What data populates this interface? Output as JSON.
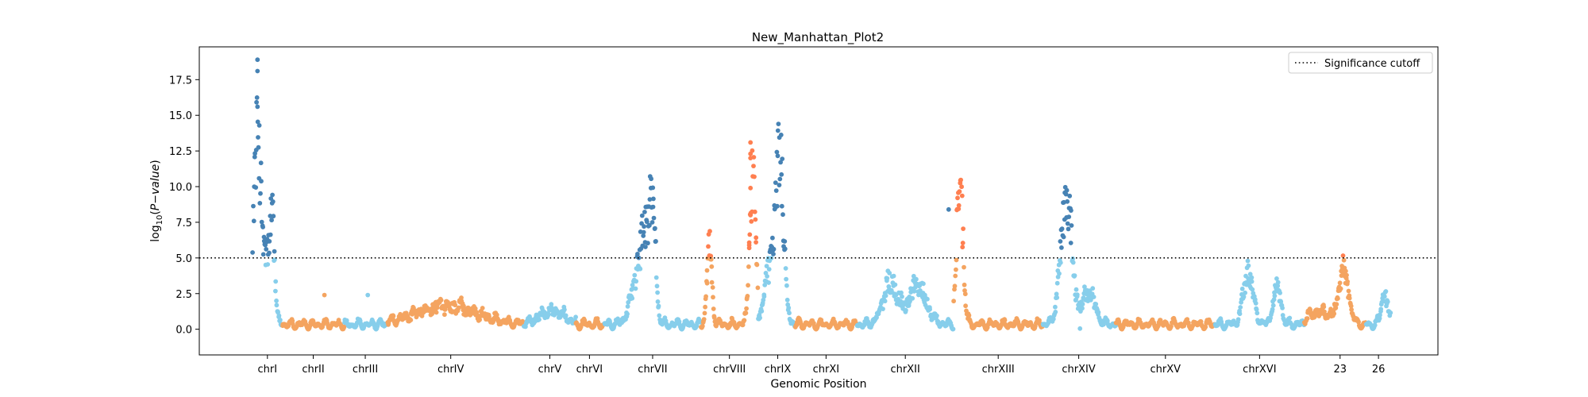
{
  "chart_data": {
    "type": "scatter",
    "title": "New_Manhattan_Plot2",
    "xlabel": "Genomic Position",
    "ylabel": "log10(P−value)",
    "ylim": [
      -1.8,
      19.8
    ],
    "yticks": [
      "0.0",
      "2.5",
      "5.0",
      "7.5",
      "10.0",
      "12.5",
      "15.0",
      "17.5"
    ],
    "ytick_values": [
      0,
      2.5,
      5,
      7.5,
      10,
      12.5,
      15,
      17.5
    ],
    "grid": false,
    "legend_position": "top-right",
    "legend": [
      {
        "label": "Significance cutoff",
        "style": "dotted",
        "color": "#000000"
      }
    ],
    "threshold": 5.0,
    "colors": {
      "light_blue": "#87ceeb",
      "sandy_orange": "#f4a460",
      "dark_blue": "#4682b4",
      "coral": "#ff7f50"
    },
    "chromosomes": [
      {
        "label": "chrI",
        "x": 0.055,
        "start": 0.043,
        "end": 0.067
      },
      {
        "label": "chrII",
        "x": 0.092,
        "start": 0.067,
        "end": 0.117
      },
      {
        "label": "chrIII",
        "x": 0.134,
        "start": 0.117,
        "end": 0.152
      },
      {
        "label": "chrIV",
        "x": 0.203,
        "start": 0.152,
        "end": 0.262
      },
      {
        "label": "chrV",
        "x": 0.283,
        "start": 0.262,
        "end": 0.304
      },
      {
        "label": "chrVI",
        "x": 0.315,
        "start": 0.304,
        "end": 0.327
      },
      {
        "label": "chrVII",
        "x": 0.366,
        "start": 0.327,
        "end": 0.405
      },
      {
        "label": "chrVIII",
        "x": 0.428,
        "start": 0.405,
        "end": 0.451
      },
      {
        "label": "chrIX",
        "x": 0.467,
        "start": 0.451,
        "end": 0.481
      },
      {
        "label": "chrXI",
        "x": 0.506,
        "start": 0.481,
        "end": 0.531
      },
      {
        "label": "chrXII",
        "x": 0.57,
        "start": 0.531,
        "end": 0.609
      },
      {
        "label": "chrXIII",
        "x": 0.645,
        "start": 0.609,
        "end": 0.681
      },
      {
        "label": "chrXIV",
        "x": 0.71,
        "start": 0.681,
        "end": 0.74
      },
      {
        "label": "chrXV",
        "x": 0.78,
        "start": 0.74,
        "end": 0.82
      },
      {
        "label": "chrXVI",
        "x": 0.856,
        "start": 0.82,
        "end": 0.892
      },
      {
        "label": "23",
        "x": 0.921,
        "start": 0.892,
        "end": 0.942
      },
      {
        "label": "26",
        "x": 0.952,
        "start": 0.942,
        "end": 0.962
      }
    ],
    "peaks": [
      {
        "center": 0.047,
        "width": 0.0035,
        "height": 13.2,
        "chrom": 0
      },
      {
        "center": 0.055,
        "width": 0.002,
        "height": 3.2,
        "chrom": 0
      },
      {
        "center": 0.059,
        "width": 0.002,
        "height": 7.3,
        "chrom": 0
      },
      {
        "center": 0.355,
        "width": 0.006,
        "height": 3.6,
        "chrom": 6
      },
      {
        "center": 0.36,
        "width": 0.003,
        "height": 4.2,
        "chrom": 6
      },
      {
        "center": 0.366,
        "width": 0.0025,
        "height": 8.0,
        "chrom": 6
      },
      {
        "center": 0.412,
        "width": 0.002,
        "height": 5.6,
        "chrom": 7
      },
      {
        "center": 0.447,
        "width": 0.0025,
        "height": 11.0,
        "chrom": 7
      },
      {
        "center": 0.462,
        "width": 0.005,
        "height": 4.5,
        "chrom": 8
      },
      {
        "center": 0.469,
        "width": 0.003,
        "height": 10.5,
        "chrom": 8
      },
      {
        "center": 0.558,
        "width": 0.006,
        "height": 3.0,
        "chrom": 10
      },
      {
        "center": 0.58,
        "width": 0.007,
        "height": 2.8,
        "chrom": 10
      },
      {
        "center": 0.614,
        "width": 0.0025,
        "height": 10.5,
        "chrom": 11
      },
      {
        "center": 0.7,
        "width": 0.0045,
        "height": 9.2,
        "chrom": 12
      },
      {
        "center": 0.718,
        "width": 0.005,
        "height": 2.3,
        "chrom": 12
      },
      {
        "center": 0.847,
        "width": 0.004,
        "height": 3.8,
        "chrom": 14
      },
      {
        "center": 0.87,
        "width": 0.003,
        "height": 2.8,
        "chrom": 14
      },
      {
        "center": 0.924,
        "width": 0.004,
        "height": 3.6,
        "chrom": 15
      },
      {
        "center": 0.957,
        "width": 0.0025,
        "height": 2.2,
        "chrom": 16
      }
    ],
    "lone_points": [
      {
        "x": 0.047,
        "y": 18.9
      },
      {
        "x": 0.047,
        "y": 18.1
      },
      {
        "x": 0.047,
        "y": 15.6
      },
      {
        "x": 0.445,
        "y": 13.1
      },
      {
        "x": 0.445,
        "y": 12.3
      },
      {
        "x": 0.445,
        "y": 12.0
      },
      {
        "x": 0.445,
        "y": 9.9
      },
      {
        "x": 0.445,
        "y": 8.0
      },
      {
        "x": 0.444,
        "y": 5.9
      },
      {
        "x": 0.444,
        "y": 5.7
      },
      {
        "x": 0.605,
        "y": 8.4
      },
      {
        "x": 0.101,
        "y": 2.4
      },
      {
        "x": 0.136,
        "y": 2.4
      },
      {
        "x": 0.711,
        "y": 0.05
      }
    ]
  }
}
